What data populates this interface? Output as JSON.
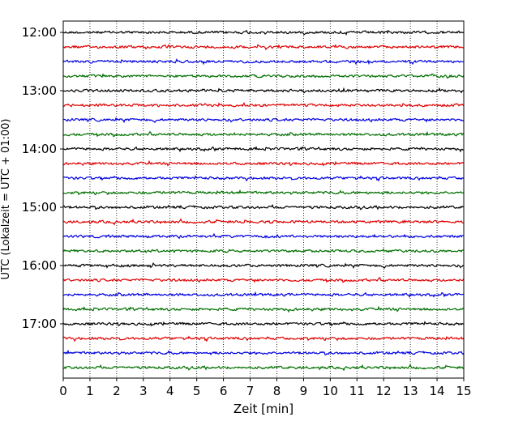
{
  "chart_data": {
    "type": "line",
    "title": "",
    "xlabel": "Zeit  [min]",
    "ylabel": "UTC (Lokalzeit = UTC + 01:00)",
    "xlim": [
      0,
      15
    ],
    "x_ticks": [
      "0",
      "1",
      "2",
      "3",
      "4",
      "5",
      "6",
      "7",
      "8",
      "9",
      "10",
      "11",
      "12",
      "13",
      "14",
      "15"
    ],
    "y_ticks": [
      "12:00",
      "13:00",
      "14:00",
      "15:00",
      "16:00",
      "17:00"
    ],
    "grid": "vertical dotted",
    "trace_interval_min": 15,
    "start_time": "12:00",
    "trace_colors": [
      "#000000",
      "#e00000",
      "#0000e0",
      "#007000"
    ],
    "trace_count": 24
  }
}
